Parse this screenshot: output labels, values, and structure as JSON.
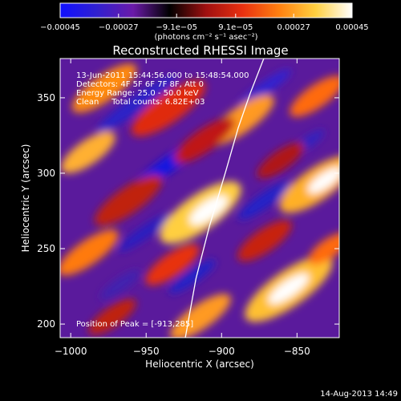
{
  "chart_data": {
    "type": "heatmap",
    "title": "Reconstructed RHESSI Image",
    "xlabel": "Heliocentric X (arcsec)",
    "ylabel": "Heliocentric Y (arcsec)",
    "xlim": [
      -1007,
      -822
    ],
    "ylim": [
      191,
      376
    ],
    "x_ticks": [
      -1000,
      -950,
      -900,
      -850
    ],
    "x_tick_labels": [
      "−1000",
      "−950",
      "−900",
      "−850"
    ],
    "y_ticks": [
      200,
      250,
      300,
      350
    ],
    "y_tick_labels": [
      "200",
      "250",
      "300",
      "350"
    ],
    "colorbar": {
      "range": [
        -0.00045,
        0.00045
      ],
      "ticks": [
        -0.00045,
        -0.00027,
        -9.1e-05,
        9.1e-05,
        0.00027,
        0.00045
      ],
      "tick_labels": [
        "−0.00045",
        "−0.00027",
        "−9.1e−05",
        "9.1e−05",
        "0.00027",
        "0.00045"
      ],
      "unit_label": "(photons cm⁻² s⁻¹ asec⁻²)",
      "colors": [
        "#1010ff",
        "#3020d0",
        "#6a1aa8",
        "#000000",
        "#a01010",
        "#e83010",
        "#ff8010",
        "#ffd040",
        "#ffffff"
      ]
    },
    "annotations": [
      "13-Jun-2011 15:44:56.000 to 15:48:54.000",
      "Detectors: 4F 5F 6F 7F 8F, Att 0",
      "Energy Range: 25.0 - 50.0 keV",
      "Clean     Total counts: 6.82E+03"
    ],
    "peak_label": "Position of Peak = [-913,285]",
    "peak_position": [
      -913,
      285
    ],
    "limb_curve": {
      "x": [
        -924,
        -917,
        -908,
        -897,
        -889,
        -881,
        -872
      ],
      "y": [
        191,
        230,
        265,
        302,
        330,
        353,
        376
      ]
    }
  },
  "footer": {
    "timestamp": "14-Aug-2013 14:49"
  }
}
